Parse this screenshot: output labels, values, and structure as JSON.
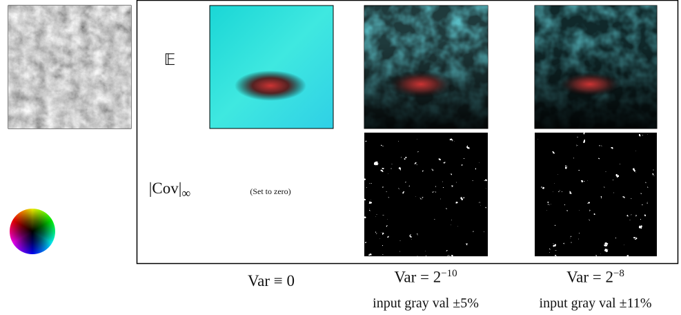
{
  "rows": [
    {
      "label": "𝔼"
    },
    {
      "label": "|Cov|",
      "subscript": "∞"
    }
  ],
  "note": "(Set to zero)",
  "columns": [
    {
      "label": "Var ≡ 0"
    },
    {
      "label": "Var = 2",
      "exponent": "−10",
      "caption": "input gray val ±5%"
    },
    {
      "label": "Var = 2",
      "exponent": "−8",
      "caption": "input gray val ±11%"
    }
  ]
}
